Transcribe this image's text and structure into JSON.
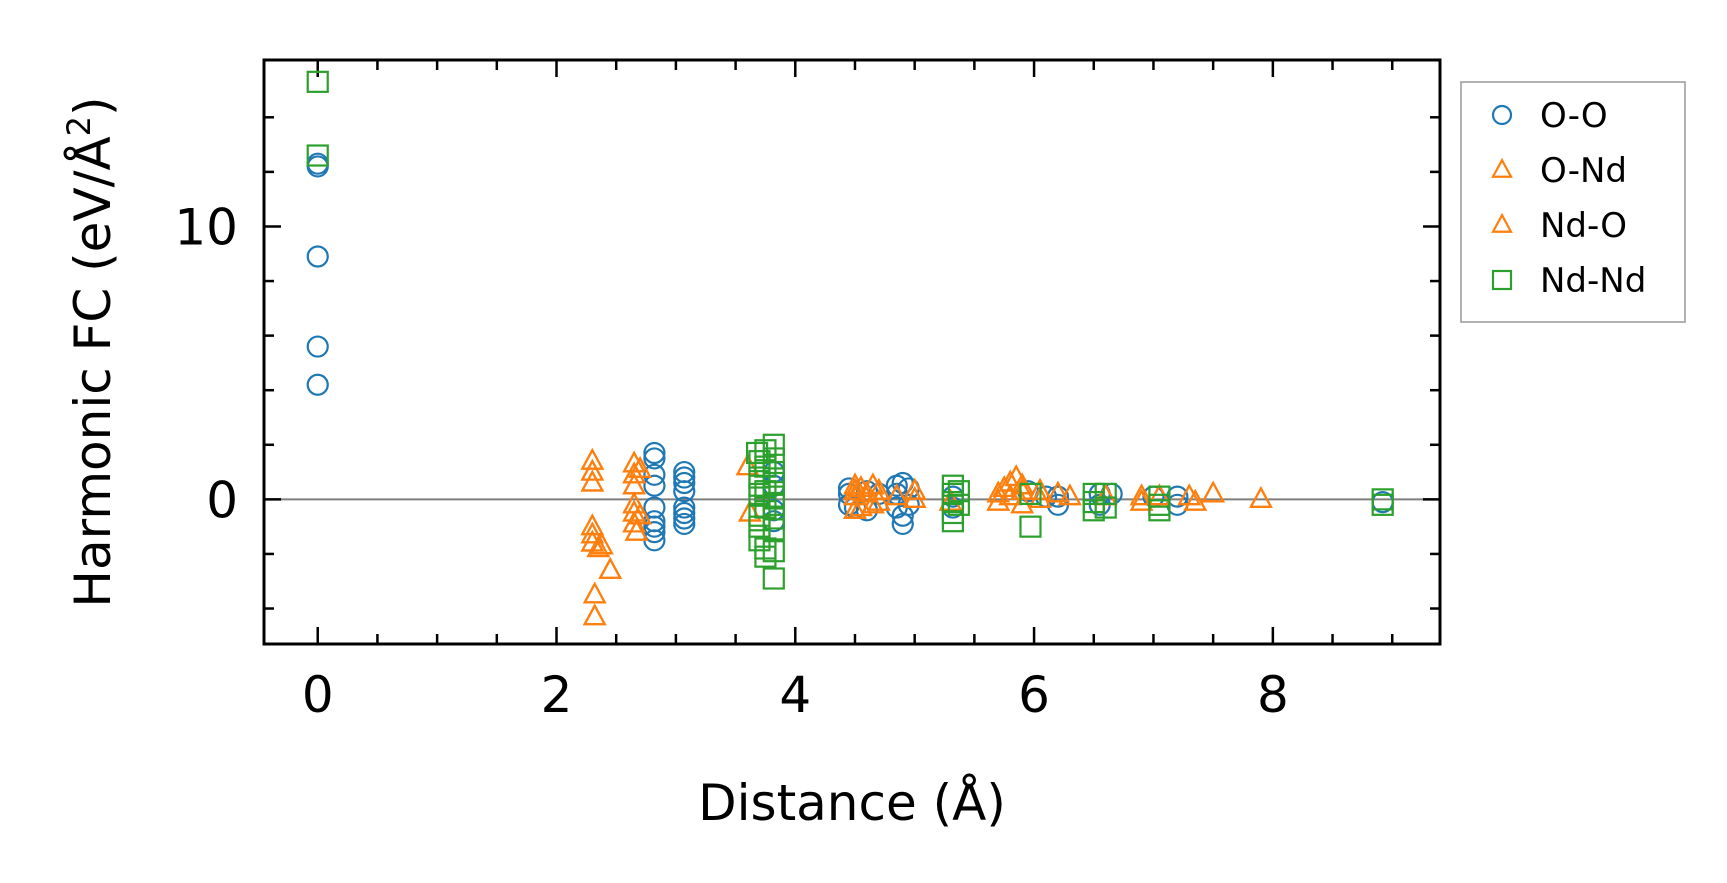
{
  "chart_data": {
    "type": "scatter",
    "xlabel": "Distance (Å)",
    "ylabel": "Harmonic FC (eV/Å",
    "ylabel_sup": "2",
    "ylabel_tail": ")",
    "xlim": [
      -0.45,
      9.4
    ],
    "ylim": [
      -5.3,
      16.1
    ],
    "xticks": [
      0,
      2,
      4,
      6,
      8
    ],
    "xtick_labels": [
      "0",
      "2",
      "4",
      "6",
      "8"
    ],
    "yticks": [
      0,
      10
    ],
    "ytick_labels": [
      "0",
      "10"
    ],
    "minor_xticks": [
      -0.5,
      0.5,
      1,
      1.5,
      2.5,
      3,
      3.5,
      4.5,
      5,
      5.5,
      6.5,
      7,
      7.5,
      8.5,
      9
    ],
    "minor_yticks": [
      -4,
      -2,
      2,
      4,
      6,
      8,
      12,
      14
    ],
    "reference_line_y": 0,
    "grid": false,
    "legend_position": "outside-right-top",
    "series": [
      {
        "name": "O-O",
        "marker": "circle",
        "color": "#1f77b4",
        "points": [
          [
            0,
            12.2
          ],
          [
            0,
            12.3
          ],
          [
            0,
            8.9
          ],
          [
            0,
            5.6
          ],
          [
            0,
            4.2
          ],
          [
            2.82,
            1.7
          ],
          [
            2.82,
            1.5
          ],
          [
            2.82,
            0.9
          ],
          [
            2.82,
            0.5
          ],
          [
            2.82,
            -0.3
          ],
          [
            2.82,
            -0.8
          ],
          [
            2.82,
            -1.0
          ],
          [
            2.82,
            -1.2
          ],
          [
            2.82,
            -1.5
          ],
          [
            3.07,
            1.0
          ],
          [
            3.07,
            0.8
          ],
          [
            3.07,
            0.6
          ],
          [
            3.07,
            0.3
          ],
          [
            3.07,
            -0.3
          ],
          [
            3.07,
            -0.5
          ],
          [
            3.07,
            -0.7
          ],
          [
            3.07,
            -0.9
          ],
          [
            3.82,
            1.0
          ],
          [
            3.82,
            0.5
          ],
          [
            3.82,
            -0.4
          ],
          [
            3.82,
            -0.8
          ],
          [
            4.45,
            0.4
          ],
          [
            4.45,
            0.2
          ],
          [
            4.45,
            -0.2
          ],
          [
            4.5,
            -0.3
          ],
          [
            4.6,
            0.3
          ],
          [
            4.6,
            -0.4
          ],
          [
            4.7,
            0.2
          ],
          [
            4.85,
            0.5
          ],
          [
            4.85,
            0.2
          ],
          [
            4.85,
            -0.3
          ],
          [
            4.9,
            0.6
          ],
          [
            4.9,
            -0.6
          ],
          [
            4.9,
            -0.9
          ],
          [
            4.95,
            0.4
          ],
          [
            4.95,
            -0.2
          ],
          [
            5.32,
            0.1
          ],
          [
            5.32,
            -0.3
          ],
          [
            5.95,
            0.3
          ],
          [
            6.1,
            0.1
          ],
          [
            6.2,
            0.1
          ],
          [
            6.2,
            -0.2
          ],
          [
            6.55,
            0.2
          ],
          [
            6.55,
            -0.2
          ],
          [
            6.65,
            0.2
          ],
          [
            7.0,
            0.1
          ],
          [
            7.2,
            0.1
          ],
          [
            7.2,
            -0.2
          ],
          [
            8.92,
            -0.1
          ]
        ]
      },
      {
        "name": "O-Nd",
        "marker": "triangle",
        "color": "#ff7f0e",
        "points": [
          [
            2.3,
            1.4
          ],
          [
            2.3,
            1.0
          ],
          [
            2.3,
            0.6
          ],
          [
            2.3,
            -1.0
          ],
          [
            2.3,
            -1.3
          ],
          [
            2.3,
            -1.6
          ],
          [
            2.32,
            -3.5
          ],
          [
            2.32,
            -4.3
          ],
          [
            2.35,
            -1.8
          ],
          [
            2.38,
            -1.7
          ],
          [
            2.45,
            -2.6
          ],
          [
            2.65,
            1.3
          ],
          [
            2.65,
            0.9
          ],
          [
            2.65,
            0.5
          ],
          [
            2.65,
            -0.2
          ],
          [
            2.65,
            -0.5
          ],
          [
            2.65,
            -0.9
          ],
          [
            2.67,
            -1.2
          ],
          [
            2.7,
            1.1
          ],
          [
            2.7,
            -0.6
          ],
          [
            3.6,
            1.2
          ],
          [
            3.62,
            -0.5
          ],
          [
            4.5,
            0.5
          ],
          [
            4.5,
            0.3
          ],
          [
            4.5,
            0.1
          ],
          [
            4.5,
            -0.4
          ],
          [
            4.55,
            0.4
          ],
          [
            4.55,
            -0.3
          ],
          [
            4.6,
            0.2
          ],
          [
            4.65,
            0.5
          ],
          [
            4.65,
            -0.2
          ],
          [
            4.7,
            0.3
          ],
          [
            4.7,
            -0.1
          ],
          [
            4.85,
            0.1
          ],
          [
            5.0,
            0.3
          ],
          [
            5.0,
            0.0
          ],
          [
            5.3,
            -0.1
          ],
          [
            5.7,
            0.2
          ],
          [
            5.7,
            -0.1
          ],
          [
            5.75,
            0.4
          ],
          [
            5.8,
            0.6
          ],
          [
            5.8,
            0.1
          ],
          [
            5.85,
            0.8
          ],
          [
            5.9,
            0.5
          ],
          [
            5.9,
            0.3
          ],
          [
            5.9,
            -0.2
          ],
          [
            6.05,
            0.3
          ],
          [
            6.05,
            0.0
          ],
          [
            6.2,
            0.2
          ],
          [
            6.3,
            0.1
          ],
          [
            6.6,
            0.1
          ],
          [
            6.9,
            0.1
          ],
          [
            6.9,
            -0.1
          ],
          [
            7.05,
            0.1
          ],
          [
            7.3,
            0.1
          ],
          [
            7.35,
            -0.1
          ],
          [
            7.5,
            0.2
          ],
          [
            7.9,
            0.0
          ]
        ]
      },
      {
        "name": "Nd-O",
        "marker": "triangle",
        "color": "#ff7f0e",
        "points": [
          [
            2.3,
            1.4
          ],
          [
            2.3,
            1.0
          ],
          [
            2.3,
            0.6
          ],
          [
            2.3,
            -1.0
          ],
          [
            2.3,
            -1.3
          ],
          [
            2.3,
            -1.6
          ],
          [
            2.32,
            -3.5
          ],
          [
            2.32,
            -4.3
          ],
          [
            2.35,
            -1.8
          ],
          [
            2.38,
            -1.7
          ],
          [
            2.45,
            -2.6
          ],
          [
            2.65,
            1.3
          ],
          [
            2.65,
            0.9
          ],
          [
            2.65,
            0.5
          ],
          [
            2.65,
            -0.2
          ],
          [
            2.65,
            -0.5
          ],
          [
            2.65,
            -0.9
          ],
          [
            2.67,
            -1.2
          ],
          [
            2.7,
            1.1
          ],
          [
            2.7,
            -0.6
          ],
          [
            3.6,
            1.2
          ],
          [
            3.62,
            -0.5
          ],
          [
            4.5,
            0.5
          ],
          [
            4.5,
            0.3
          ],
          [
            4.5,
            0.1
          ],
          [
            4.5,
            -0.4
          ],
          [
            4.55,
            0.4
          ],
          [
            4.55,
            -0.3
          ],
          [
            4.6,
            0.2
          ],
          [
            4.65,
            0.5
          ],
          [
            4.65,
            -0.2
          ],
          [
            4.7,
            0.3
          ],
          [
            4.7,
            -0.1
          ],
          [
            4.85,
            0.1
          ],
          [
            5.0,
            0.3
          ],
          [
            5.0,
            0.0
          ],
          [
            5.3,
            -0.1
          ],
          [
            5.7,
            0.2
          ],
          [
            5.7,
            -0.1
          ],
          [
            5.75,
            0.4
          ],
          [
            5.8,
            0.6
          ],
          [
            5.8,
            0.1
          ],
          [
            5.85,
            0.8
          ],
          [
            5.9,
            0.5
          ],
          [
            5.9,
            0.3
          ],
          [
            5.9,
            -0.2
          ],
          [
            6.05,
            0.3
          ],
          [
            6.05,
            0.0
          ],
          [
            6.2,
            0.2
          ],
          [
            6.3,
            0.1
          ],
          [
            6.6,
            0.1
          ],
          [
            6.9,
            0.1
          ],
          [
            6.9,
            -0.1
          ],
          [
            7.05,
            0.1
          ],
          [
            7.3,
            0.1
          ],
          [
            7.35,
            -0.1
          ],
          [
            7.5,
            0.2
          ],
          [
            7.9,
            0.0
          ]
        ]
      },
      {
        "name": "Nd-Nd",
        "marker": "square",
        "color": "#2ca02c",
        "points": [
          [
            0,
            15.3
          ],
          [
            0,
            12.6
          ],
          [
            3.68,
            1.7
          ],
          [
            3.7,
            1.4
          ],
          [
            3.7,
            0.8
          ],
          [
            3.7,
            0.5
          ],
          [
            3.7,
            0.2
          ],
          [
            3.7,
            -0.6
          ],
          [
            3.7,
            -1.0
          ],
          [
            3.7,
            -1.5
          ],
          [
            3.75,
            1.8
          ],
          [
            3.75,
            1.2
          ],
          [
            3.75,
            0.3
          ],
          [
            3.75,
            -0.3
          ],
          [
            3.75,
            -1.8
          ],
          [
            3.75,
            -2.1
          ],
          [
            3.82,
            2.0
          ],
          [
            3.82,
            1.5
          ],
          [
            3.82,
            1.0
          ],
          [
            3.82,
            0.6
          ],
          [
            3.82,
            0.1
          ],
          [
            3.82,
            -0.2
          ],
          [
            3.82,
            -0.7
          ],
          [
            3.82,
            -1.1
          ],
          [
            3.82,
            -1.9
          ],
          [
            3.82,
            -2.9
          ],
          [
            5.32,
            0.5
          ],
          [
            5.32,
            0.2
          ],
          [
            5.32,
            -0.1
          ],
          [
            5.32,
            -0.5
          ],
          [
            5.32,
            -0.8
          ],
          [
            5.37,
            0.3
          ],
          [
            5.37,
            -0.2
          ],
          [
            5.97,
            0.2
          ],
          [
            5.97,
            -1.0
          ],
          [
            6.5,
            0.2
          ],
          [
            6.5,
            -0.1
          ],
          [
            6.5,
            -0.4
          ],
          [
            6.6,
            0.2
          ],
          [
            6.6,
            -0.3
          ],
          [
            7.05,
            0.1
          ],
          [
            7.05,
            -0.2
          ],
          [
            7.05,
            -0.4
          ],
          [
            8.92,
            0.0
          ],
          [
            8.92,
            -0.2
          ]
        ]
      }
    ]
  }
}
